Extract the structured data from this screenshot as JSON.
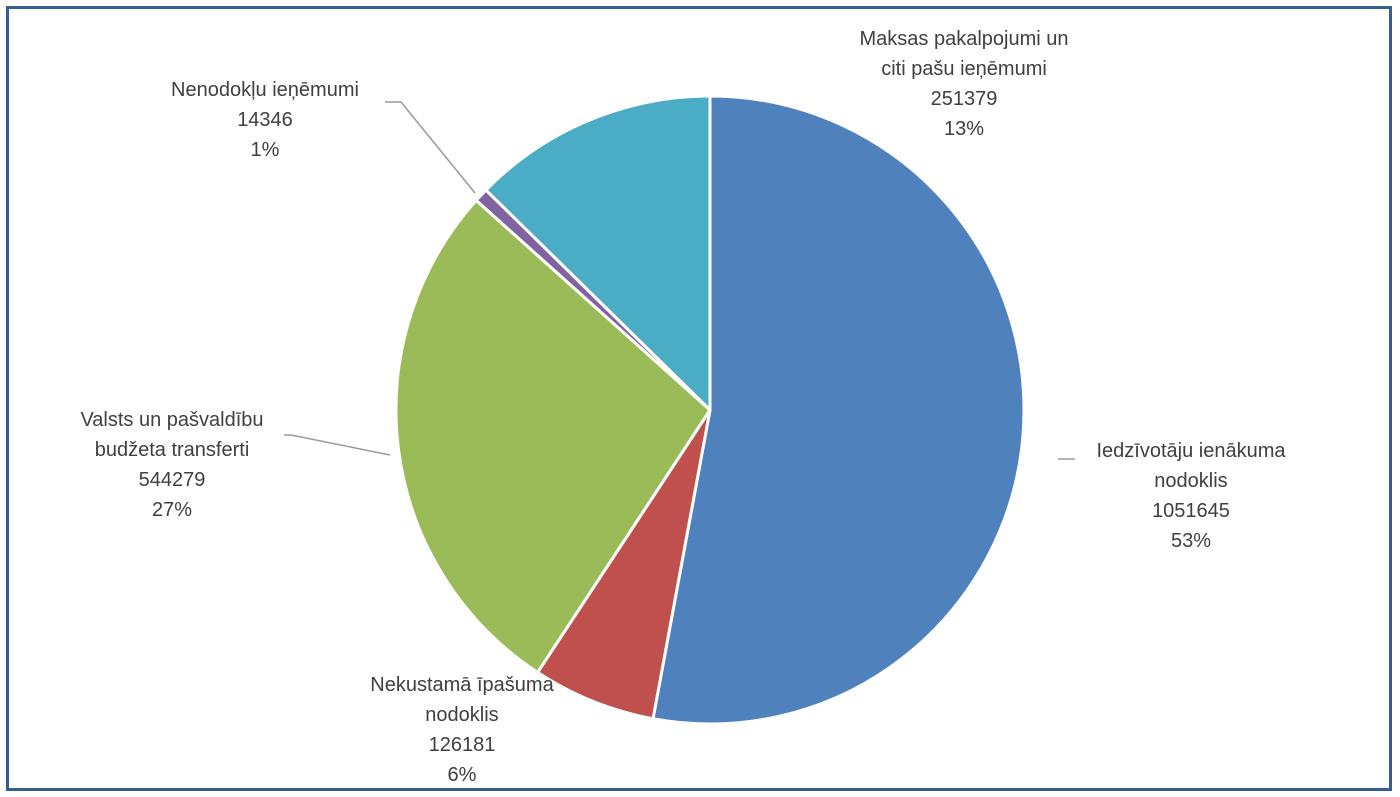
{
  "chart_data": {
    "type": "pie",
    "slices": [
      {
        "name": "Iedzīvotāju ienākuma nodoklis",
        "label_lines": [
          "Iedzīvotāju ienākuma",
          "nodoklis"
        ],
        "value": 1051645,
        "percent": "53%",
        "color": "#4f81bd"
      },
      {
        "name": "Nekustamā īpašuma nodoklis",
        "label_lines": [
          "Nekustamā īpašuma",
          "nodoklis"
        ],
        "value": 126181,
        "percent": "6%",
        "color": "#c0504d"
      },
      {
        "name": "Valsts un pašvaldību budžeta transferti",
        "label_lines": [
          "Valsts un pašvaldību",
          "budžeta transferti"
        ],
        "value": 544279,
        "percent": "27%",
        "color": "#9bbb59"
      },
      {
        "name": "Nenodokļu ieņēmumi",
        "label_lines": [
          "Nenodokļu ieņēmumi"
        ],
        "value": 14346,
        "percent": "1%",
        "color": "#8064a2"
      },
      {
        "name": "Maksas pakalpojumi un citi pašu ieņēmumi",
        "label_lines": [
          "Maksas pakalpojumi un",
          "citi pašu ieņēmumi"
        ],
        "value": 251379,
        "percent": "13%",
        "color": "#4bacc6"
      }
    ],
    "start_angle_deg": 0,
    "direction": "clockwise",
    "legend": "none",
    "data_labels": "outside"
  }
}
